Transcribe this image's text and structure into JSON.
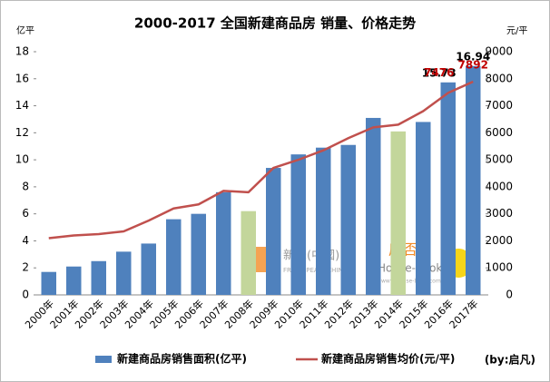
{
  "chart_data": {
    "type": "bar-line",
    "title": "2000-2017 全国新建商品房 销量、价格走势",
    "y_label": "亿平",
    "y2_label": "元/平",
    "categories": [
      "2000年",
      "2001年",
      "2002年",
      "2003年",
      "2004年",
      "2005年",
      "2006年",
      "2007年",
      "2008年",
      "2009年",
      "2010年",
      "2011年",
      "2012年",
      "2013年",
      "2014年",
      "2015年",
      "2016年",
      "2017年"
    ],
    "series": [
      {
        "name": "新建商品房销售面积(亿平)",
        "type": "bar",
        "color": "#4f81bd",
        "colors": [
          "#4f81bd",
          "#4f81bd",
          "#4f81bd",
          "#4f81bd",
          "#4f81bd",
          "#4f81bd",
          "#4f81bd",
          "#4f81bd",
          "#c3d69b",
          "#4f81bd",
          "#4f81bd",
          "#4f81bd",
          "#4f81bd",
          "#4f81bd",
          "#c3d69b",
          "#4f81bd",
          "#4f81bd",
          "#4f81bd"
        ],
        "values": [
          1.7,
          2.1,
          2.5,
          3.2,
          3.8,
          5.6,
          6.0,
          7.6,
          6.2,
          9.4,
          10.4,
          10.9,
          11.1,
          13.1,
          12.1,
          12.8,
          15.73,
          16.94
        ],
        "value_labels": [
          null,
          null,
          null,
          null,
          null,
          null,
          null,
          null,
          null,
          null,
          null,
          null,
          null,
          null,
          null,
          null,
          "15.73",
          "16.94"
        ],
        "label_color": "#000000"
      },
      {
        "name": "新建商品房销售均价(元/平)",
        "type": "line",
        "axis": "y2",
        "color": "#c0504d",
        "values": [
          2100,
          2200,
          2250,
          2350,
          2750,
          3200,
          3350,
          3850,
          3800,
          4700,
          5000,
          5350,
          5800,
          6200,
          6300,
          6800,
          7476,
          7892
        ],
        "value_labels": [
          null,
          null,
          null,
          null,
          null,
          null,
          null,
          null,
          null,
          null,
          null,
          null,
          null,
          null,
          null,
          null,
          "7476",
          "7892"
        ],
        "label_color": "#c00000"
      }
    ],
    "ylim": [
      0,
      18
    ],
    "yticks": [
      0,
      2,
      4,
      6,
      8,
      10,
      12,
      14,
      16,
      18
    ],
    "y2lim": [
      0,
      9000
    ],
    "y2ticks": [
      0,
      1000,
      2000,
      3000,
      4000,
      5000,
      6000,
      7000,
      8000,
      9000
    ],
    "grid": false,
    "legend": "bottom",
    "credit": "(by:启凡)",
    "watermarks": [
      "新峰(中國)",
      "FRESH PEAK (CHINA)",
      "房否",
      "House-Book",
      "www.house-book.com.cn"
    ]
  }
}
